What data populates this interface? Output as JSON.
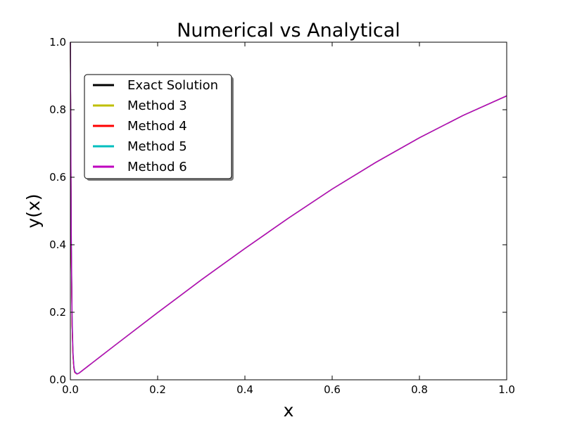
{
  "chart_data": {
    "type": "line",
    "title": "Numerical vs Analytical",
    "xlabel": "x",
    "ylabel": "y(x)",
    "xlim": [
      0.0,
      1.0
    ],
    "ylim": [
      0.0,
      1.0
    ],
    "x_ticks": [
      "0.0",
      "0.2",
      "0.4",
      "0.6",
      "0.8",
      "1.0"
    ],
    "y_ticks": [
      "0.0",
      "0.2",
      "0.4",
      "0.6",
      "0.8",
      "1.0"
    ],
    "grid": false,
    "legend_position": "upper-left",
    "x": [
      0.0,
      0.002,
      0.004,
      0.006,
      0.008,
      0.01,
      0.015,
      0.02,
      0.05,
      0.1,
      0.2,
      0.3,
      0.4,
      0.5,
      0.6,
      0.7,
      0.8,
      0.9,
      1.0
    ],
    "series": [
      {
        "name": "Exact Solution",
        "color": "#000000",
        "values": [
          1.0,
          0.4,
          0.16,
          0.07,
          0.035,
          0.022,
          0.017,
          0.02,
          0.05,
          0.1,
          0.199,
          0.296,
          0.389,
          0.479,
          0.565,
          0.644,
          0.717,
          0.783,
          0.841
        ]
      },
      {
        "name": "Method 3",
        "color": "#bfbf00",
        "values": [
          1.0,
          0.42,
          0.17,
          0.075,
          0.037,
          0.023,
          0.017,
          0.02,
          0.05,
          0.1,
          0.199,
          0.296,
          0.389,
          0.479,
          0.565,
          0.644,
          0.717,
          0.783,
          0.841
        ]
      },
      {
        "name": "Method 4",
        "color": "#ff0000",
        "values": [
          1.0,
          0.41,
          0.165,
          0.072,
          0.036,
          0.022,
          0.017,
          0.02,
          0.05,
          0.1,
          0.199,
          0.296,
          0.389,
          0.479,
          0.565,
          0.644,
          0.717,
          0.783,
          0.841
        ]
      },
      {
        "name": "Method 5",
        "color": "#00bfbf",
        "values": [
          1.0,
          0.45,
          0.19,
          0.085,
          0.042,
          0.025,
          0.018,
          0.02,
          0.05,
          0.1,
          0.199,
          0.296,
          0.389,
          0.479,
          0.565,
          0.644,
          0.717,
          0.783,
          0.841
        ]
      },
      {
        "name": "Method 6",
        "color": "#bf00bf",
        "values": [
          1.0,
          0.43,
          0.175,
          0.078,
          0.038,
          0.023,
          0.017,
          0.02,
          0.05,
          0.1,
          0.199,
          0.296,
          0.389,
          0.479,
          0.565,
          0.644,
          0.717,
          0.783,
          0.841
        ]
      }
    ]
  }
}
